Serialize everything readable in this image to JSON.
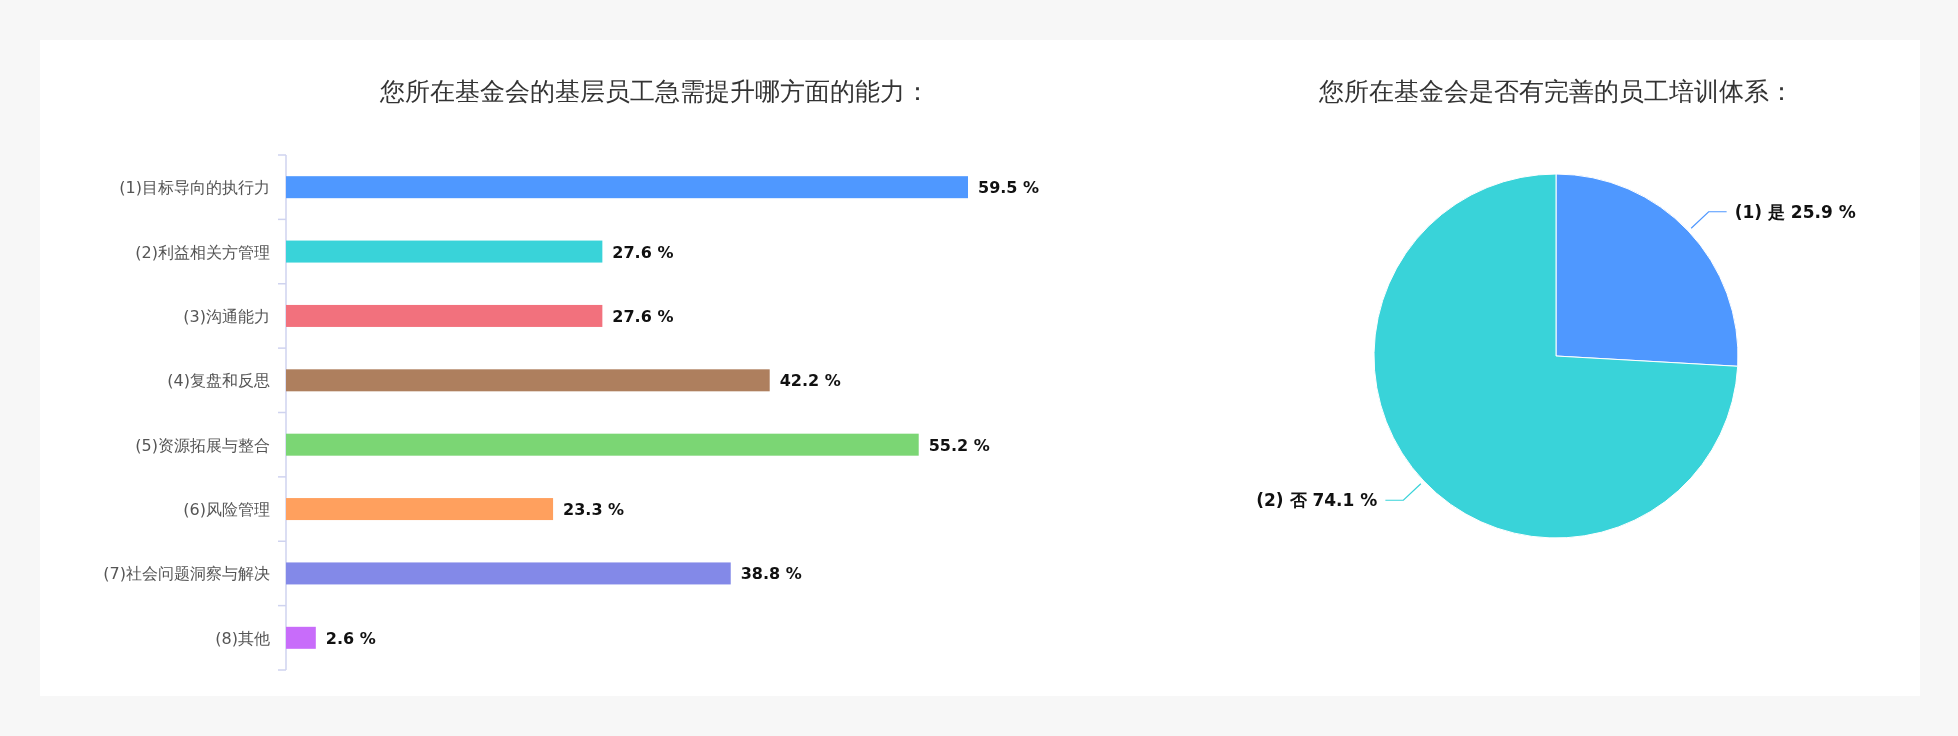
{
  "chart_data": [
    {
      "type": "bar",
      "orientation": "horizontal",
      "title": "您所在基金会的基层员工急需提升哪方面的能力：",
      "categories": [
        "(1)目标导向的执行力",
        "(2)利益相关方管理",
        "(3)沟通能力",
        "(4)复盘和反思",
        "(5)资源拓展与整合",
        "(6)风险管理",
        "(7)社会问题洞察与解决",
        "(8)其他"
      ],
      "values": [
        59.5,
        27.6,
        27.6,
        42.2,
        55.2,
        23.3,
        38.8,
        2.6
      ],
      "colors": [
        "#4f98ff",
        "#39d3d9",
        "#f2717d",
        "#ae7f5e",
        "#7bd674",
        "#ffa05e",
        "#8389e8",
        "#c86cfa"
      ],
      "value_labels": [
        "59.5 %",
        "27.6 %",
        "27.6 %",
        "42.2 %",
        "55.2 %",
        "23.3 %",
        "38.8 %",
        "2.6 %"
      ]
    },
    {
      "type": "pie",
      "title": "您所在基金会是否有完善的员工培训体系：",
      "categories": [
        "(1) 是",
        "(2) 否"
      ],
      "values": [
        25.9,
        74.1
      ],
      "colors": [
        "#4f98ff",
        "#39d3d9"
      ],
      "value_labels": [
        "25.9 %",
        "74.1 %"
      ]
    }
  ]
}
